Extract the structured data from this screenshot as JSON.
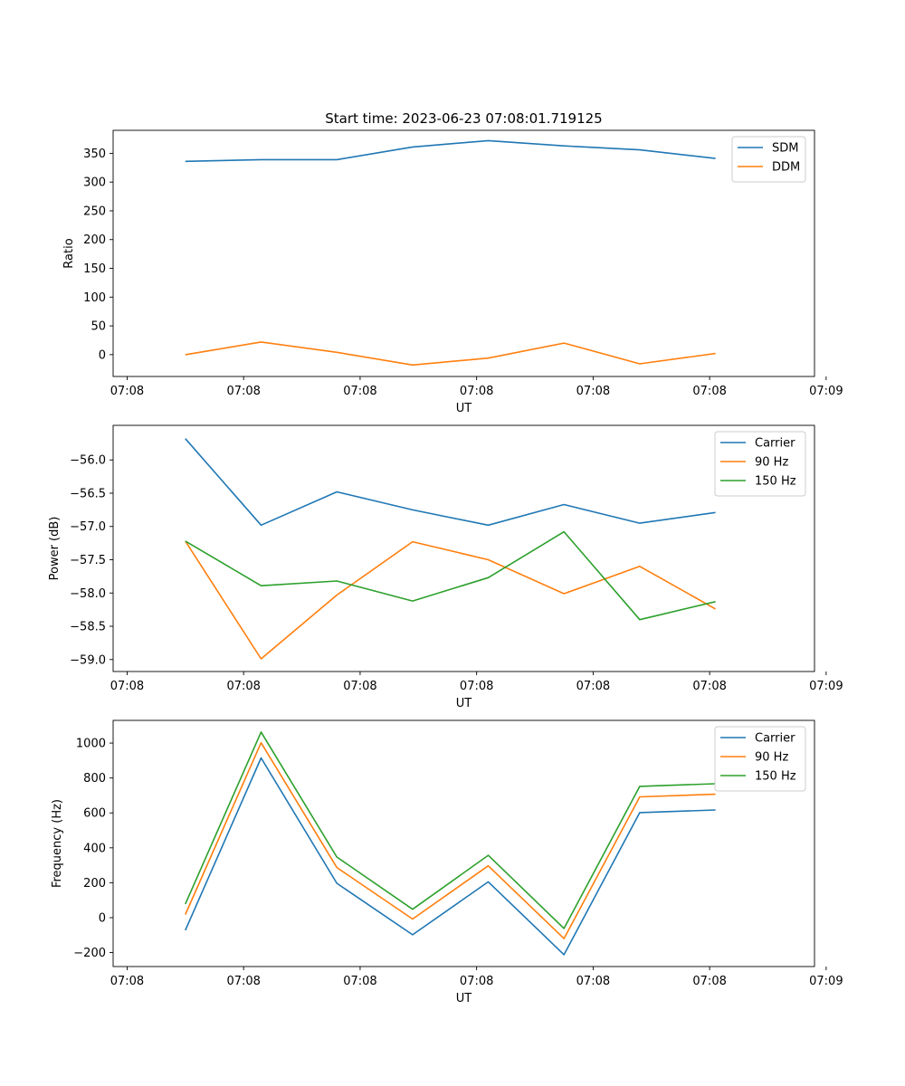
{
  "figure": {
    "title": "Start time: 2023-06-23 07:08:01.719125"
  },
  "chart_data": [
    {
      "type": "line",
      "xlabel": "UT",
      "ylabel": "Ratio",
      "xlim": [
        -0.12,
        5.9
      ],
      "ylim": [
        -38,
        390
      ],
      "x": [
        0.5,
        1.15,
        1.8,
        2.45,
        3.1,
        3.75,
        4.4,
        5.05
      ],
      "xticks": [
        0,
        1,
        2,
        3,
        4,
        5,
        6
      ],
      "xticklabels": [
        "07:08",
        "07:08",
        "07:08",
        "07:08",
        "07:08",
        "07:08",
        "07:09"
      ],
      "yticks": [
        0,
        50,
        100,
        150,
        200,
        250,
        300,
        350
      ],
      "yticklabels": [
        "0",
        "50",
        "100",
        "150",
        "200",
        "250",
        "300",
        "350"
      ],
      "legend": "top-right",
      "grid": false,
      "series": [
        {
          "name": "SDM",
          "color": "#1f77b4",
          "values": [
            336,
            339,
            339,
            361,
            372,
            363,
            356,
            341
          ]
        },
        {
          "name": "DDM",
          "color": "#ff7f0e",
          "values": [
            0,
            22,
            4,
            -18,
            -6,
            20,
            -16,
            2
          ]
        }
      ]
    },
    {
      "type": "line",
      "xlabel": "UT",
      "ylabel": "Power (dB)",
      "xlim": [
        -0.12,
        5.9
      ],
      "ylim": [
        -59.18,
        -55.48
      ],
      "x": [
        0.5,
        1.15,
        1.8,
        2.45,
        3.1,
        3.75,
        4.4,
        5.05
      ],
      "xticks": [
        0,
        1,
        2,
        3,
        4,
        5,
        6
      ],
      "xticklabels": [
        "07:08",
        "07:08",
        "07:08",
        "07:08",
        "07:08",
        "07:08",
        "07:09"
      ],
      "yticks": [
        -59.0,
        -58.5,
        -58.0,
        -57.5,
        -57.0,
        -56.5,
        -56.0
      ],
      "yticklabels": [
        "−59.0",
        "−58.5",
        "−58.0",
        "−57.5",
        "−57.0",
        "−56.5",
        "−56.0"
      ],
      "legend": "top-right",
      "grid": false,
      "series": [
        {
          "name": "Carrier",
          "color": "#1f77b4",
          "values": [
            -55.68,
            -56.98,
            -56.48,
            -56.75,
            -56.98,
            -56.67,
            -56.95,
            -56.79
          ]
        },
        {
          "name": "90 Hz",
          "color": "#ff7f0e",
          "values": [
            -57.22,
            -58.99,
            -58.03,
            -57.23,
            -57.5,
            -58.01,
            -57.6,
            -58.24
          ]
        },
        {
          "name": "150 Hz",
          "color": "#2ca02c",
          "values": [
            -57.22,
            -57.89,
            -57.82,
            -58.12,
            -57.77,
            -57.08,
            -58.4,
            -58.13
          ]
        }
      ]
    },
    {
      "type": "line",
      "xlabel": "UT",
      "ylabel": "Frequency (Hz)",
      "xlim": [
        -0.12,
        5.9
      ],
      "ylim": [
        -280,
        1130
      ],
      "x": [
        0.5,
        1.15,
        1.8,
        2.45,
        3.1,
        3.75,
        4.4,
        5.05
      ],
      "xticks": [
        0,
        1,
        2,
        3,
        4,
        5,
        6
      ],
      "xticklabels": [
        "07:08",
        "07:08",
        "07:08",
        "07:08",
        "07:08",
        "07:08",
        "07:09"
      ],
      "yticks": [
        -200,
        0,
        200,
        400,
        600,
        800,
        1000
      ],
      "yticklabels": [
        "−200",
        "0",
        "200",
        "400",
        "600",
        "800",
        "1000"
      ],
      "legend": "top-right",
      "grid": false,
      "series": [
        {
          "name": "Carrier",
          "color": "#1f77b4",
          "values": [
            -72,
            915,
            197,
            -98,
            205,
            -212,
            602,
            617
          ]
        },
        {
          "name": "90 Hz",
          "color": "#ff7f0e",
          "values": [
            18,
            1002,
            287,
            -8,
            297,
            -120,
            692,
            707
          ]
        },
        {
          "name": "150 Hz",
          "color": "#2ca02c",
          "values": [
            78,
            1063,
            347,
            48,
            357,
            -62,
            752,
            767
          ]
        }
      ]
    }
  ]
}
